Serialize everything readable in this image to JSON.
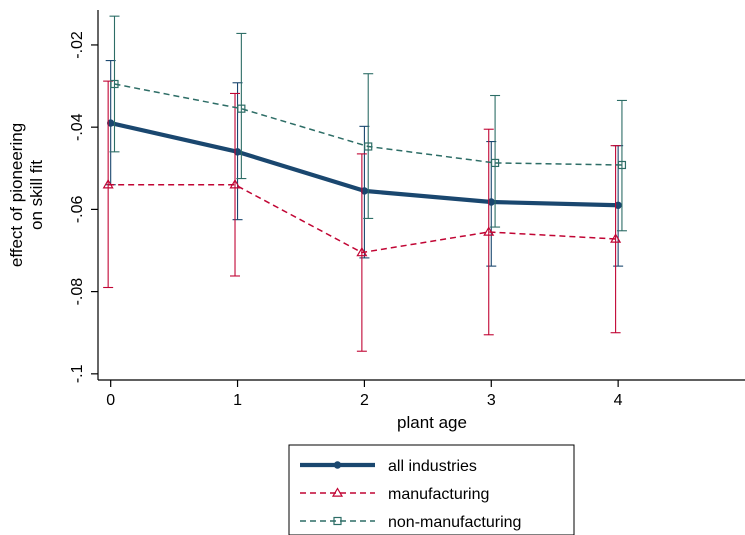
{
  "chart_data": {
    "type": "line",
    "title": "",
    "xlabel": "plant age",
    "ylabel_lines": [
      "effect of pioneering",
      "on skill fit"
    ],
    "x_ticks": [
      "0",
      "1",
      "2",
      "3",
      "4"
    ],
    "x": [
      0,
      1,
      2,
      3,
      4
    ],
    "xlim": [
      -0.1,
      5.0
    ],
    "ylim": [
      -0.1015,
      -0.0115
    ],
    "y_ticks": [
      {
        "value": -0.02,
        "label": "-.02"
      },
      {
        "value": -0.04,
        "label": "-.04"
      },
      {
        "value": -0.06,
        "label": "-.06"
      },
      {
        "value": -0.08,
        "label": "-.08"
      },
      {
        "value": -0.1,
        "label": "-.1"
      }
    ],
    "grid": false,
    "legend_position": "bottom",
    "series": [
      {
        "name": "all industries",
        "color": "#1a476f",
        "style": "solid-thick",
        "marker": "circle",
        "x_offset": 0,
        "values": [
          -0.039,
          -0.046,
          -0.0555,
          -0.0582,
          -0.059
        ],
        "ci_low": [
          -0.054,
          -0.0625,
          -0.0718,
          -0.0738,
          -0.0738
        ],
        "ci_high": [
          -0.0238,
          -0.0292,
          -0.0398,
          -0.0435,
          -0.0445
        ]
      },
      {
        "name": "manufacturing",
        "color": "#c10534",
        "style": "dashed",
        "marker": "triangle",
        "x_offset": -0.02,
        "values": [
          -0.054,
          -0.054,
          -0.0705,
          -0.0655,
          -0.0672
        ],
        "ci_low": [
          -0.079,
          -0.0762,
          -0.0945,
          -0.0905,
          -0.09
        ],
        "ci_high": [
          -0.0288,
          -0.0318,
          -0.0465,
          -0.0405,
          -0.0445
        ]
      },
      {
        "name": "non-manufacturing",
        "color": "#2d6d66",
        "style": "dashed",
        "marker": "square",
        "x_offset": 0.03,
        "values": [
          -0.0295,
          -0.0355,
          -0.0447,
          -0.0487,
          -0.0492
        ],
        "ci_low": [
          -0.046,
          -0.0525,
          -0.0622,
          -0.0643,
          -0.0652
        ],
        "ci_high": [
          -0.013,
          -0.0172,
          -0.027,
          -0.0323,
          -0.0335
        ]
      }
    ]
  }
}
